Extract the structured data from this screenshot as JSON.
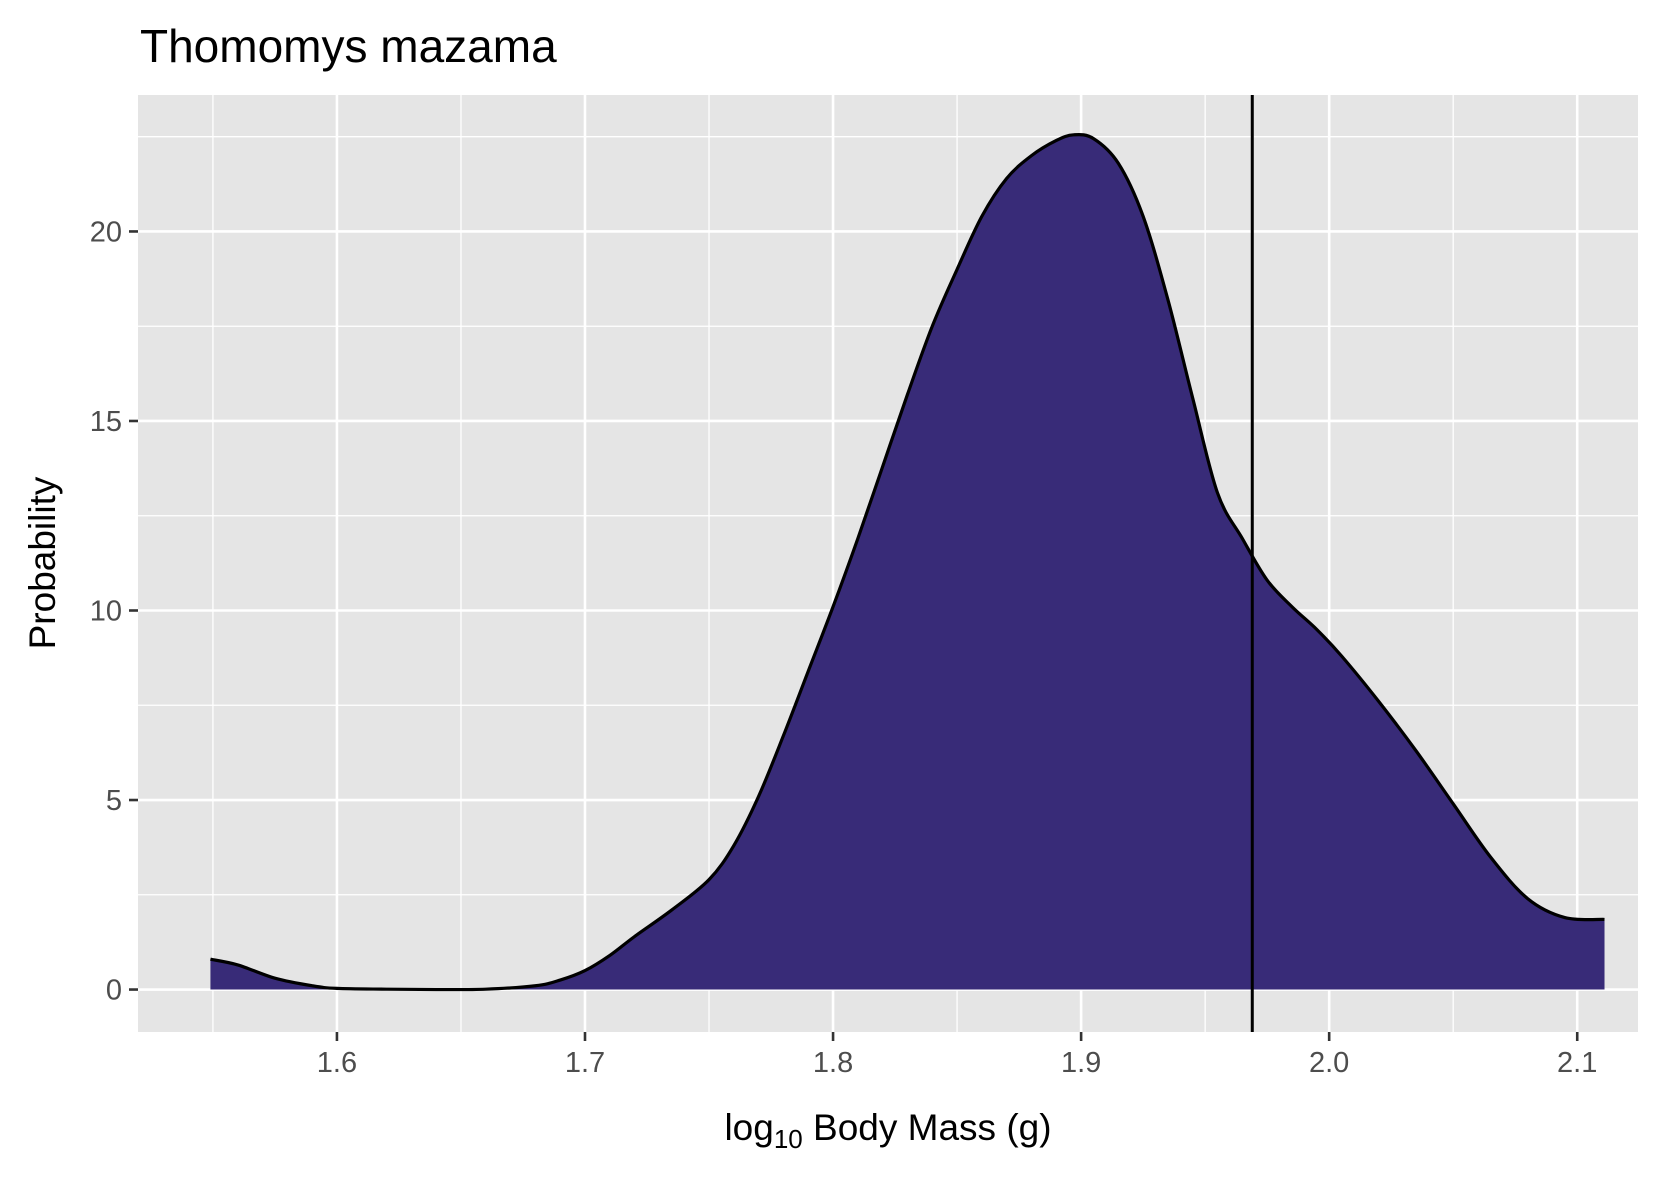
{
  "chart_data": {
    "type": "area",
    "title": "Thomomys mazama",
    "xlabel_main": "log",
    "xlabel_sub": "10",
    "xlabel_rest": " Body Mass (g)",
    "ylabel": "Probability",
    "xlim": [
      1.5198,
      2.1245
    ],
    "ylim": [
      -1.12,
      23.6
    ],
    "x_ticks": [
      1.6,
      1.7,
      1.8,
      1.9,
      2.0,
      2.1
    ],
    "x_tick_labels": [
      "1.6",
      "1.7",
      "1.8",
      "1.9",
      "2.0",
      "2.1"
    ],
    "y_ticks": [
      0,
      5,
      10,
      15,
      20
    ],
    "y_tick_labels": [
      "0",
      "5",
      "10",
      "15",
      "20"
    ],
    "grid": true,
    "vline_x": 1.969,
    "fill_color": "#382b78",
    "line_color": "#000000",
    "panel_background": "#e5e5e5",
    "grid_color": "#ffffff",
    "x": [
      1.549,
      1.56,
      1.575,
      1.59,
      1.6,
      1.62,
      1.64,
      1.66,
      1.68,
      1.69,
      1.7,
      1.71,
      1.72,
      1.735,
      1.75,
      1.76,
      1.77,
      1.78,
      1.79,
      1.8,
      1.81,
      1.82,
      1.83,
      1.84,
      1.85,
      1.86,
      1.87,
      1.88,
      1.89,
      1.897,
      1.905,
      1.915,
      1.925,
      1.935,
      1.945,
      1.955,
      1.965,
      1.975,
      1.985,
      1.995,
      2.005,
      2.02,
      2.035,
      2.05,
      2.065,
      2.08,
      2.095,
      2.111
    ],
    "y": [
      0.8,
      0.65,
      0.3,
      0.1,
      0.03,
      0.01,
      0.0,
      0.01,
      0.1,
      0.25,
      0.5,
      0.9,
      1.4,
      2.1,
      2.9,
      3.8,
      5.1,
      6.7,
      8.4,
      10.1,
      11.9,
      13.8,
      15.7,
      17.5,
      19.0,
      20.4,
      21.4,
      22.0,
      22.4,
      22.55,
      22.45,
      21.8,
      20.4,
      18.2,
      15.6,
      13.1,
      11.9,
      10.8,
      10.1,
      9.5,
      8.8,
      7.6,
      6.3,
      4.9,
      3.5,
      2.4,
      1.9,
      1.85
    ]
  }
}
